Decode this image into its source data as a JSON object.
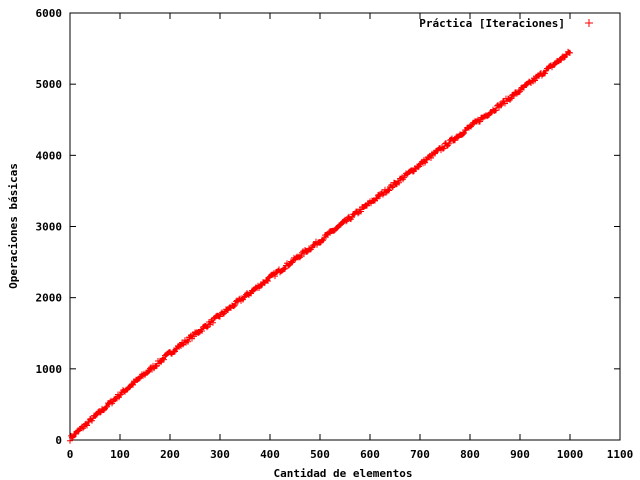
{
  "chart_data": {
    "type": "scatter",
    "title": "",
    "xlabel": "Cantidad de elementos",
    "ylabel": "Operaciones básicas",
    "xlim": [
      0,
      1100
    ],
    "ylim": [
      0,
      6000
    ],
    "x_ticks": [
      "0",
      "100",
      "200",
      "300",
      "400",
      "500",
      "600",
      "700",
      "800",
      "900",
      "1000",
      "1100"
    ],
    "y_ticks": [
      "0",
      "1000",
      "2000",
      "3000",
      "4000",
      "5000",
      "6000"
    ],
    "grid": false,
    "legend_position": "top-right",
    "marker": "+",
    "series": [
      {
        "name": "Práctica [Iteraciones]",
        "color": "#ff0000",
        "x_range": [
          0,
          1000
        ],
        "x_step": 2,
        "y_at_x": [
          [
            0,
            20
          ],
          [
            100,
            640
          ],
          [
            200,
            1220
          ],
          [
            300,
            1750
          ],
          [
            400,
            2280
          ],
          [
            500,
            2800
          ],
          [
            600,
            3330
          ],
          [
            700,
            3870
          ],
          [
            800,
            4400
          ],
          [
            900,
            4910
          ],
          [
            1000,
            5450
          ]
        ]
      }
    ]
  }
}
